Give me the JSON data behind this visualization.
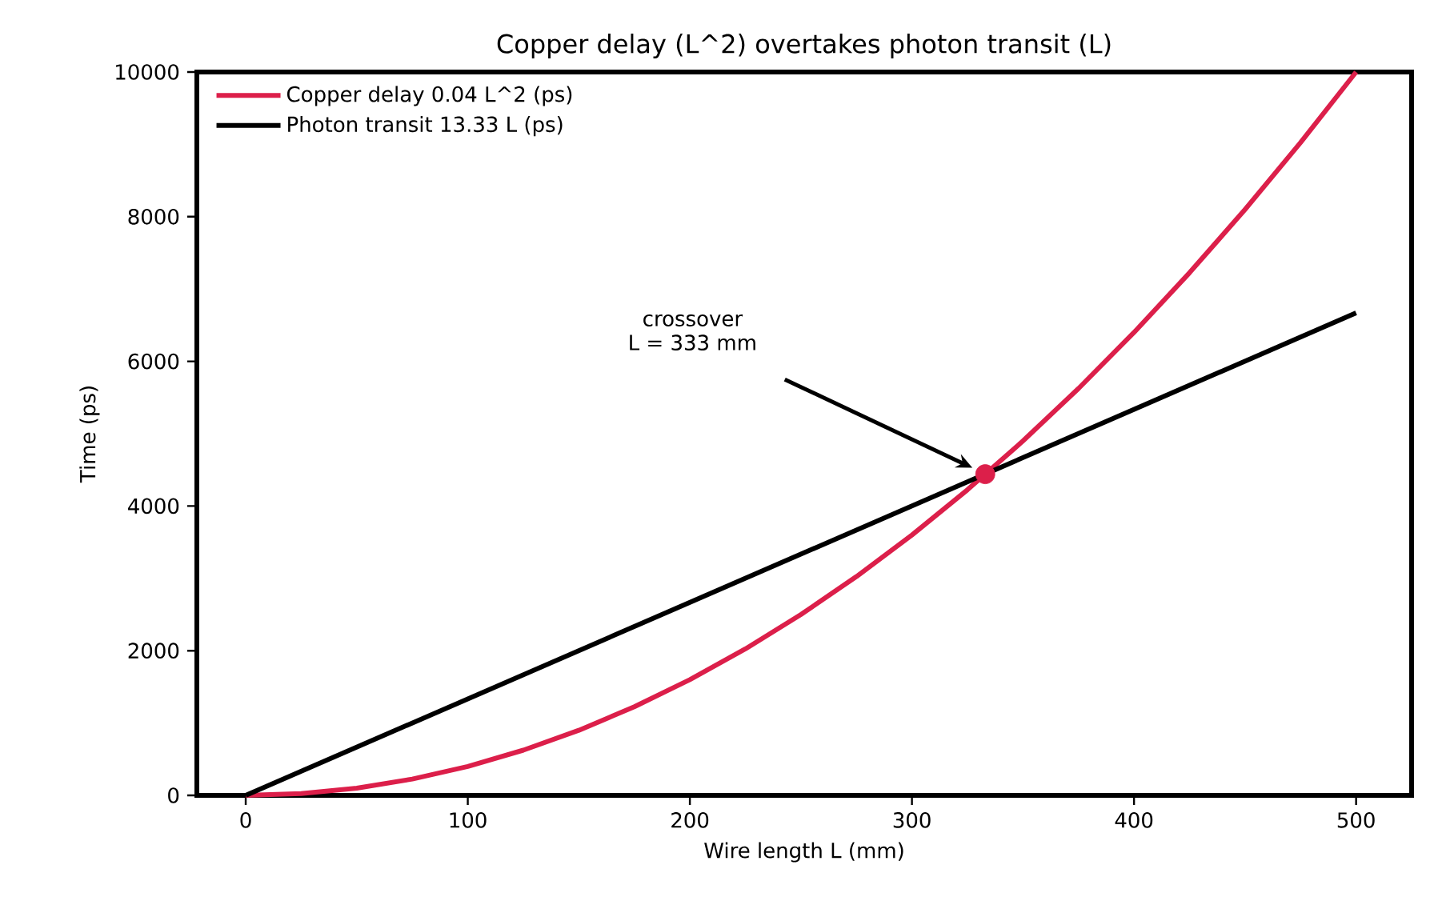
{
  "chart_data": {
    "type": "line",
    "title": "Copper delay (L^2) overtakes photon transit (L)",
    "xlabel": "Wire length L (mm)",
    "ylabel": "Time (ps)",
    "xlim": [
      -22,
      525
    ],
    "ylim": [
      0,
      10000
    ],
    "xticks": [
      0,
      100,
      200,
      300,
      400,
      500
    ],
    "yticks": [
      0,
      2000,
      4000,
      6000,
      8000,
      10000
    ],
    "legend": "top left",
    "series": [
      {
        "name": "Copper delay  0.04 L^2 (ps)",
        "color": "#dc1f4a",
        "x": [
          0,
          25,
          50,
          75,
          100,
          125,
          150,
          175,
          200,
          225,
          250,
          275,
          300,
          325,
          350,
          375,
          400,
          425,
          450,
          475,
          500
        ],
        "values": [
          0,
          25,
          100,
          225,
          400,
          625,
          900,
          1225,
          1600,
          2025,
          2500,
          3025,
          3600,
          4225,
          4900,
          5625,
          6400,
          7225,
          8100,
          9025,
          10000
        ]
      },
      {
        "name": "Photon transit  13.33 L (ps)",
        "color": "#000000",
        "x": [
          0,
          500
        ],
        "values": [
          0,
          6670
        ]
      },
      {
        "color": "#dc1f4a",
        "type": "scatter",
        "marker": "circle",
        "x": [
          333
        ],
        "values": [
          4440
        ]
      }
    ],
    "annotations": [
      "crossover",
      "L = 333 mm"
    ]
  }
}
